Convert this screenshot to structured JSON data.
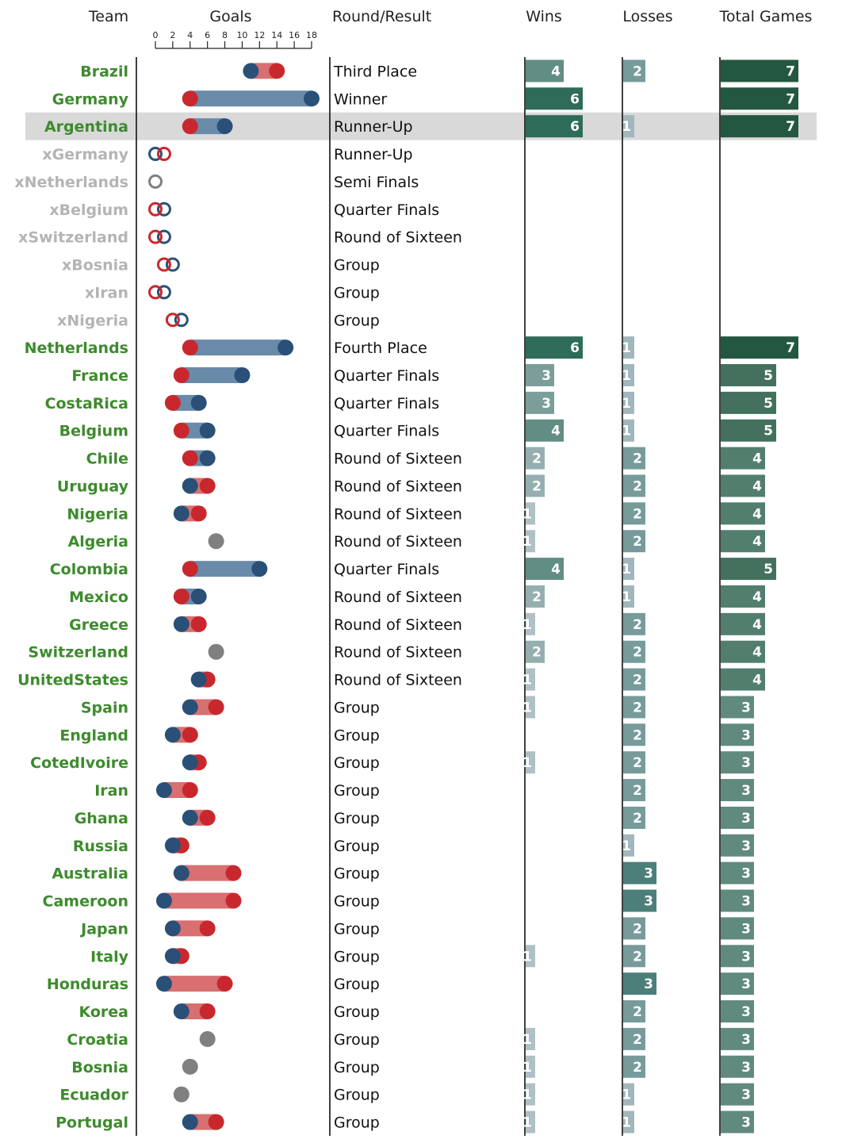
{
  "chart_data": {
    "type": "table",
    "columns": [
      "Team",
      "Goals",
      "Round/Result",
      "Wins",
      "Losses",
      "Total Games"
    ],
    "goals_axis": {
      "ticks": [
        0,
        2,
        4,
        6,
        8,
        10,
        12,
        14,
        16,
        18
      ],
      "range": [
        0,
        18
      ]
    },
    "highlighted_row": "Argentina",
    "colors": {
      "scored": "#2a5078",
      "conceded": "#c8282d",
      "scored_bar": "#6a8aaa",
      "conceded_bar": "#d86f70",
      "same_goals": "#808080",
      "team_active": "#3d8b2d",
      "team_eliminated": "#b4b4b4",
      "highlight": "#d9d9d9"
    },
    "rows": [
      {
        "team": "Brazil",
        "scored": 11,
        "conceded": 14,
        "round": "Third Place",
        "wins": 4,
        "losses": 2,
        "total": 7
      },
      {
        "team": "Germany",
        "scored": 18,
        "conceded": 4,
        "round": "Winner",
        "wins": 6,
        "losses": 0,
        "total": 7
      },
      {
        "team": "Argentina",
        "scored": 8,
        "conceded": 4,
        "round": "Runner-Up",
        "wins": 6,
        "losses": 1,
        "total": 7
      },
      {
        "team": "xGermany",
        "scored": 0,
        "conceded": 1,
        "round": "Runner-Up",
        "wins": 0,
        "losses": 0,
        "total": 0,
        "eliminated": true
      },
      {
        "team": "xNetherlands",
        "scored": 0,
        "conceded": 0,
        "round": "Semi Finals",
        "wins": 0,
        "losses": 0,
        "total": 0,
        "eliminated": true
      },
      {
        "team": "xBelgium",
        "scored": 1,
        "conceded": 0,
        "round": "Quarter Finals",
        "wins": 0,
        "losses": 0,
        "total": 0,
        "eliminated": true
      },
      {
        "team": "xSwitzerland",
        "scored": 1,
        "conceded": 0,
        "round": "Round of Sixteen",
        "wins": 0,
        "losses": 0,
        "total": 0,
        "eliminated": true
      },
      {
        "team": "xBosnia",
        "scored": 2,
        "conceded": 1,
        "round": "Group",
        "wins": 0,
        "losses": 0,
        "total": 0,
        "eliminated": true
      },
      {
        "team": "xIran",
        "scored": 1,
        "conceded": 0,
        "round": "Group",
        "wins": 0,
        "losses": 0,
        "total": 0,
        "eliminated": true
      },
      {
        "team": "xNigeria",
        "scored": 3,
        "conceded": 2,
        "round": "Group",
        "wins": 0,
        "losses": 0,
        "total": 0,
        "eliminated": true
      },
      {
        "team": "Netherlands",
        "scored": 15,
        "conceded": 4,
        "round": "Fourth Place",
        "wins": 6,
        "losses": 1,
        "total": 7
      },
      {
        "team": "France",
        "scored": 10,
        "conceded": 3,
        "round": "Quarter Finals",
        "wins": 3,
        "losses": 1,
        "total": 5
      },
      {
        "team": "CostaRica",
        "scored": 5,
        "conceded": 2,
        "round": "Quarter Finals",
        "wins": 3,
        "losses": 1,
        "total": 5
      },
      {
        "team": "Belgium",
        "scored": 6,
        "conceded": 3,
        "round": "Quarter Finals",
        "wins": 4,
        "losses": 1,
        "total": 5
      },
      {
        "team": "Chile",
        "scored": 6,
        "conceded": 4,
        "round": "Round of Sixteen",
        "wins": 2,
        "losses": 2,
        "total": 4
      },
      {
        "team": "Uruguay",
        "scored": 4,
        "conceded": 6,
        "round": "Round of Sixteen",
        "wins": 2,
        "losses": 2,
        "total": 4
      },
      {
        "team": "Nigeria",
        "scored": 3,
        "conceded": 5,
        "round": "Round of Sixteen",
        "wins": 1,
        "losses": 2,
        "total": 4
      },
      {
        "team": "Algeria",
        "scored": 7,
        "conceded": 7,
        "round": "Round of Sixteen",
        "wins": 1,
        "losses": 2,
        "total": 4
      },
      {
        "team": "Colombia",
        "scored": 12,
        "conceded": 4,
        "round": "Quarter Finals",
        "wins": 4,
        "losses": 1,
        "total": 5
      },
      {
        "team": "Mexico",
        "scored": 5,
        "conceded": 3,
        "round": "Round of Sixteen",
        "wins": 2,
        "losses": 1,
        "total": 4
      },
      {
        "team": "Greece",
        "scored": 3,
        "conceded": 5,
        "round": "Round of Sixteen",
        "wins": 1,
        "losses": 2,
        "total": 4
      },
      {
        "team": "Switzerland",
        "scored": 7,
        "conceded": 7,
        "round": "Round of Sixteen",
        "wins": 2,
        "losses": 2,
        "total": 4
      },
      {
        "team": "UnitedStates",
        "scored": 5,
        "conceded": 6,
        "round": "Round of Sixteen",
        "wins": 1,
        "losses": 2,
        "total": 4
      },
      {
        "team": "Spain",
        "scored": 4,
        "conceded": 7,
        "round": "Group",
        "wins": 1,
        "losses": 2,
        "total": 3
      },
      {
        "team": "England",
        "scored": 2,
        "conceded": 4,
        "round": "Group",
        "wins": 0,
        "losses": 2,
        "total": 3
      },
      {
        "team": "CotedIvoire",
        "scored": 4,
        "conceded": 5,
        "round": "Group",
        "wins": 1,
        "losses": 2,
        "total": 3
      },
      {
        "team": "Iran",
        "scored": 1,
        "conceded": 4,
        "round": "Group",
        "wins": 0,
        "losses": 2,
        "total": 3
      },
      {
        "team": "Ghana",
        "scored": 4,
        "conceded": 6,
        "round": "Group",
        "wins": 0,
        "losses": 2,
        "total": 3
      },
      {
        "team": "Russia",
        "scored": 2,
        "conceded": 3,
        "round": "Group",
        "wins": 0,
        "losses": 1,
        "total": 3
      },
      {
        "team": "Australia",
        "scored": 3,
        "conceded": 9,
        "round": "Group",
        "wins": 0,
        "losses": 3,
        "total": 3
      },
      {
        "team": "Cameroon",
        "scored": 1,
        "conceded": 9,
        "round": "Group",
        "wins": 0,
        "losses": 3,
        "total": 3
      },
      {
        "team": "Japan",
        "scored": 2,
        "conceded": 6,
        "round": "Group",
        "wins": 0,
        "losses": 2,
        "total": 3
      },
      {
        "team": "Italy",
        "scored": 2,
        "conceded": 3,
        "round": "Group",
        "wins": 1,
        "losses": 2,
        "total": 3
      },
      {
        "team": "Honduras",
        "scored": 1,
        "conceded": 8,
        "round": "Group",
        "wins": 0,
        "losses": 3,
        "total": 3
      },
      {
        "team": "Korea",
        "scored": 3,
        "conceded": 6,
        "round": "Group",
        "wins": 0,
        "losses": 2,
        "total": 3
      },
      {
        "team": "Croatia",
        "scored": 6,
        "conceded": 6,
        "round": "Group",
        "wins": 1,
        "losses": 2,
        "total": 3
      },
      {
        "team": "Bosnia",
        "scored": 4,
        "conceded": 4,
        "round": "Group",
        "wins": 1,
        "losses": 2,
        "total": 3
      },
      {
        "team": "Ecuador",
        "scored": 3,
        "conceded": 3,
        "round": "Group",
        "wins": 1,
        "losses": 1,
        "total": 3
      },
      {
        "team": "Portugal",
        "scored": 4,
        "conceded": 7,
        "round": "Group",
        "wins": 1,
        "losses": 1,
        "total": 3
      }
    ]
  }
}
